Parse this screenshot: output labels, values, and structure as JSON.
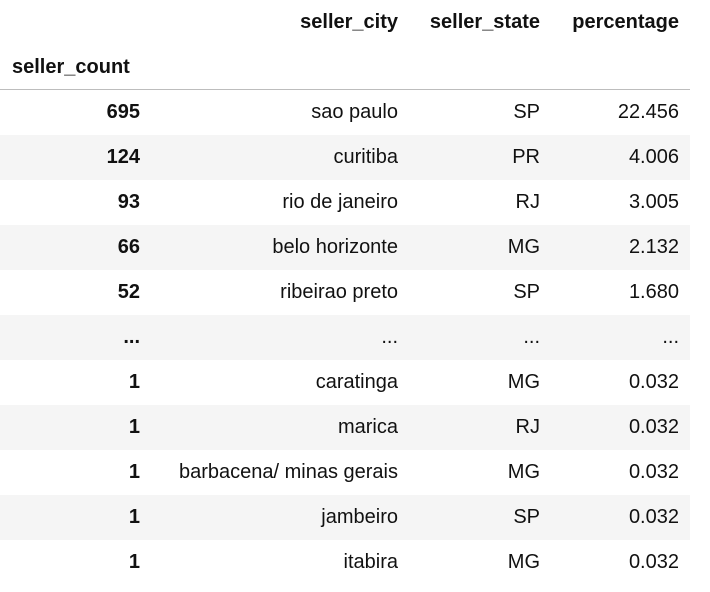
{
  "table": {
    "index_name": "seller_count",
    "columns": [
      "seller_city",
      "seller_state",
      "percentage"
    ],
    "rows": [
      {
        "index": "695",
        "seller_city": "sao paulo",
        "seller_state": "SP",
        "percentage": "22.456"
      },
      {
        "index": "124",
        "seller_city": "curitiba",
        "seller_state": "PR",
        "percentage": "4.006"
      },
      {
        "index": "93",
        "seller_city": "rio de janeiro",
        "seller_state": "RJ",
        "percentage": "3.005"
      },
      {
        "index": "66",
        "seller_city": "belo horizonte",
        "seller_state": "MG",
        "percentage": "2.132"
      },
      {
        "index": "52",
        "seller_city": "ribeirao preto",
        "seller_state": "SP",
        "percentage": "1.680"
      },
      {
        "index": "...",
        "seller_city": "...",
        "seller_state": "...",
        "percentage": "..."
      },
      {
        "index": "1",
        "seller_city": "caratinga",
        "seller_state": "MG",
        "percentage": "0.032"
      },
      {
        "index": "1",
        "seller_city": "marica",
        "seller_state": "RJ",
        "percentage": "0.032"
      },
      {
        "index": "1",
        "seller_city": "barbacena/ minas gerais",
        "seller_state": "MG",
        "percentage": "0.032"
      },
      {
        "index": "1",
        "seller_city": "jambeiro",
        "seller_state": "SP",
        "percentage": "0.032"
      },
      {
        "index": "1",
        "seller_city": "itabira",
        "seller_state": "MG",
        "percentage": "0.032"
      }
    ]
  }
}
